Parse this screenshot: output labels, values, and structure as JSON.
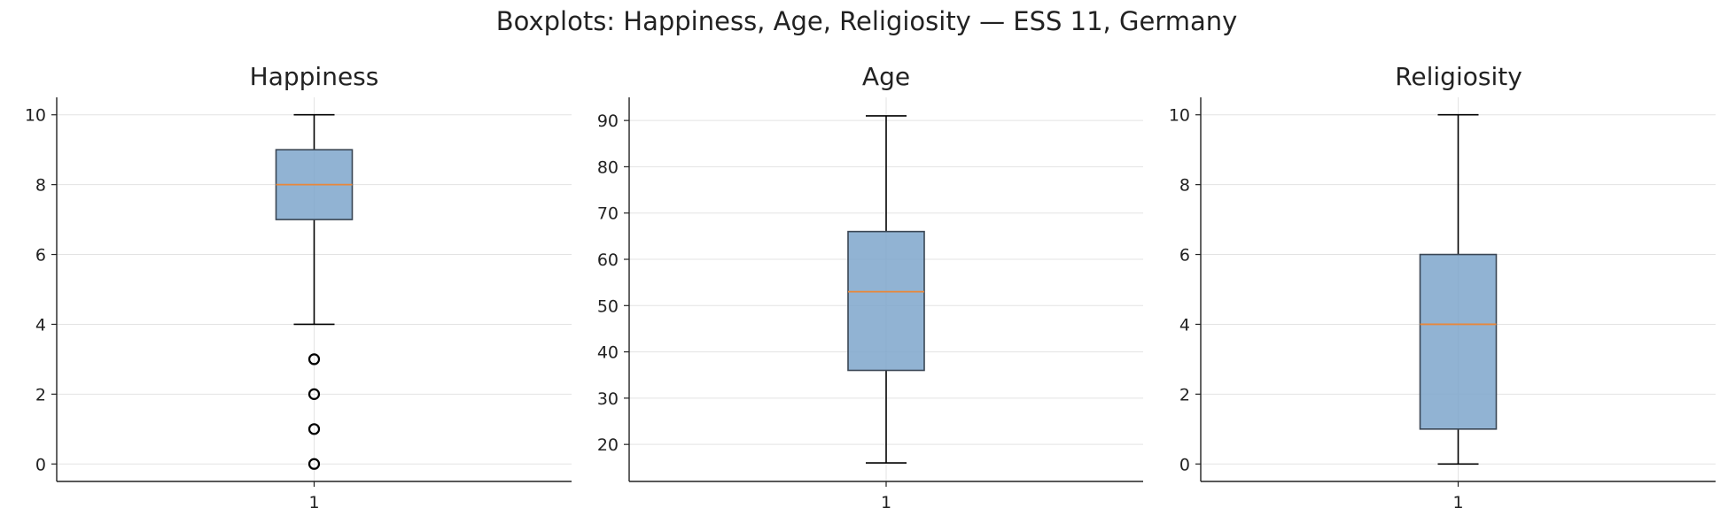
{
  "suptitle": "Boxplots: Happiness, Age, Religiosity — ESS 11, Germany",
  "colors": {
    "box_fill": "#7ea6cb",
    "box_edge": "#3a4654",
    "median": "#e8873a",
    "whisker": "#000000",
    "grid": "#e3e3e3",
    "axis": "#222222"
  },
  "chart_data": [
    {
      "type": "boxplot",
      "title": "Happiness",
      "categories": [
        "1"
      ],
      "ylim": [
        -0.5,
        10.5
      ],
      "yticks": [
        0,
        2,
        4,
        6,
        8,
        10
      ],
      "grid": true,
      "box": {
        "whisker_low": 4,
        "q1": 7,
        "median": 8,
        "q3": 9,
        "whisker_high": 10
      },
      "outliers": [
        3,
        2,
        1,
        0
      ]
    },
    {
      "type": "boxplot",
      "title": "Age",
      "categories": [
        "1"
      ],
      "ylim": [
        12,
        95
      ],
      "yticks": [
        20,
        30,
        40,
        50,
        60,
        70,
        80,
        90
      ],
      "grid": true,
      "box": {
        "whisker_low": 16,
        "q1": 36,
        "median": 53,
        "q3": 66,
        "whisker_high": 91
      },
      "outliers": []
    },
    {
      "type": "boxplot",
      "title": "Religiosity",
      "categories": [
        "1"
      ],
      "ylim": [
        -0.5,
        10.5
      ],
      "yticks": [
        0,
        2,
        4,
        6,
        8,
        10
      ],
      "grid": true,
      "box": {
        "whisker_low": 0,
        "q1": 1,
        "median": 4,
        "q3": 6,
        "whisker_high": 10
      },
      "outliers": []
    }
  ]
}
